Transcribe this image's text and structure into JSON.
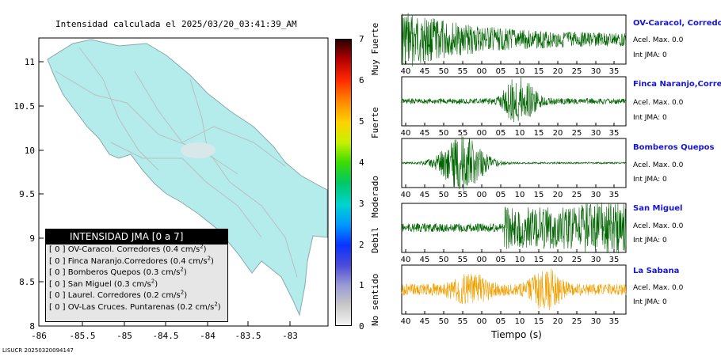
{
  "map": {
    "title": "Intensidad calculada el 2025/03/20_03:41:39_AM",
    "x_ticks": [
      "-86",
      "-85.5",
      "-85",
      "-84.5",
      "-84",
      "-83.5",
      "-83"
    ],
    "y_ticks": [
      "11",
      "10.5",
      "10",
      "9.5",
      "9",
      "8.5",
      "8"
    ],
    "land_color": "#b4ecec",
    "legend": {
      "header": "INTENSIDAD JMA [0 a 7]",
      "items": [
        {
          "value": "[ 0 ]",
          "name": "OV-Caracol. Corredores",
          "accel": "(0.4 cm/s",
          "suffix": ")"
        },
        {
          "value": "[ 0 ]",
          "name": "Finca Naranjo.Corredores",
          "accel": "(0.4 cm/s",
          "suffix": ")"
        },
        {
          "value": "[ 0 ]",
          "name": "Bomberos Quepos",
          "accel": "(0.3 cm/s",
          "suffix": ")"
        },
        {
          "value": "[ 0 ]",
          "name": "San Miguel",
          "accel": "(0.3 cm/s",
          "suffix": ")"
        },
        {
          "value": "[ 0 ]",
          "name": "Laurel. Corredores",
          "accel": "(0.2 cm/s",
          "suffix": ")"
        },
        {
          "value": "[ 0 ]",
          "name": "OV-Las Cruces. Puntarenas",
          "accel": "(0.2 cm/s",
          "suffix": ")"
        }
      ],
      "exponent": "2"
    }
  },
  "colorbar": {
    "ticks": [
      "7",
      "6",
      "5",
      "4",
      "3",
      "2",
      "1",
      "0"
    ],
    "labels": [
      "Muy Fuerte",
      "Fuerte",
      "Moderado",
      "Debil",
      "No sentido"
    ]
  },
  "footer": "LISUCR 20250320094147",
  "chart_data": {
    "type": "line",
    "x_ticks": [
      "40",
      "45",
      "50",
      "55",
      "00",
      "05",
      "10",
      "15",
      "20",
      "25",
      "30",
      "35"
    ],
    "xlabel": "Tiempo (s)",
    "series": [
      {
        "name": "OV-Caracol, Corredores",
        "accel": "Acel. Max. 0.0",
        "intensity": "Int JMA: 0",
        "color": "#006400",
        "strong_window_s": [
          40,
          60
        ]
      },
      {
        "name": "Finca Naranjo,Corredores",
        "accel": "Acel. Max. 0.0",
        "intensity": "Int JMA: 0",
        "color": "#006400",
        "strong_window_s": [
          65,
          75
        ]
      },
      {
        "name": "Bomberos Quepos",
        "accel": "Acel. Max. 0.0",
        "intensity": "Int JMA: 0",
        "color": "#006400",
        "strong_window_s": [
          45,
          66
        ]
      },
      {
        "name": "San Miguel",
        "accel": "Acel. Max. 0.0",
        "intensity": "Int JMA: 0",
        "color": "#006400",
        "strong_window_s": [
          63,
          97
        ]
      },
      {
        "name": "La Sabana",
        "accel": "Acel. Max. 0.0",
        "intensity": "Int JMA: 0",
        "color": "#f0a000",
        "strong_window_s": [
          40,
          97
        ]
      }
    ]
  }
}
